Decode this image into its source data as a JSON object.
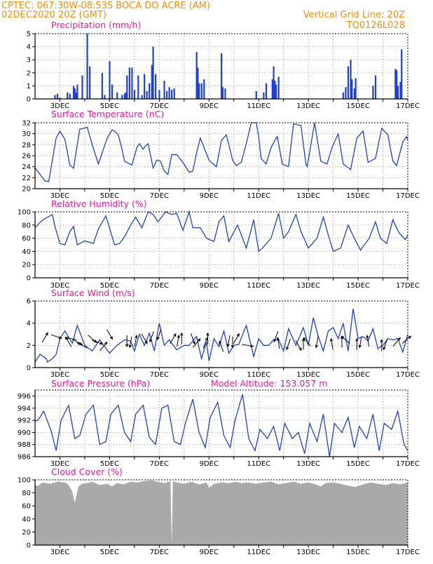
{
  "header": {
    "line1": "CPTEC:   067:30W-08:53S   BOCA DO ACRE (AM)",
    "line2_left": "02DEC2020 20Z (GMT)",
    "line2_right": "Vertical Grid Line: 20Z",
    "line3_right": "TQ0126L028"
  },
  "colors": {
    "header": "#ff8c00",
    "title": "#ff1493",
    "series": "#1f3fdb",
    "cloud": "#a9a9a9",
    "grid": "#a0a0a0",
    "arrow": "#000000"
  },
  "x_axis": {
    "labels": [
      "3DEC",
      "5DEC",
      "7DEC",
      "9DEC",
      "11DEC",
      "13DEC",
      "15DEC",
      "17DEC"
    ]
  },
  "chart_data": [
    {
      "id": "precip",
      "type": "bar",
      "title": "Precipitation (mm/h)",
      "ylim": [
        0,
        5
      ],
      "yticks": [
        "0",
        "1",
        "2",
        "3",
        "4",
        "5"
      ],
      "days": [
        2.8,
        2.9,
        3.0,
        3.3,
        3.4,
        3.55,
        3.6,
        3.65,
        3.7,
        3.9,
        4.1,
        4.2,
        4.7,
        4.8,
        5.0,
        5.1,
        5.3,
        5.5,
        5.6,
        5.65,
        5.7,
        5.8,
        5.9,
        6.0,
        6.15,
        6.3,
        6.4,
        6.5,
        6.6,
        6.7,
        6.75,
        6.85,
        7.0,
        7.2,
        7.3,
        7.4,
        7.5,
        7.6,
        8.5,
        8.55,
        8.6,
        8.7,
        8.8,
        9.5,
        9.55,
        9.65,
        10.9,
        11.2,
        11.3,
        11.55,
        11.6,
        11.65,
        11.7,
        11.8,
        14.4,
        14.5,
        14.6,
        14.7,
        14.75,
        14.85,
        14.9,
        15.6,
        15.7,
        16.5,
        16.55,
        16.6,
        16.7,
        16.75
      ],
      "values": [
        0.3,
        0.4,
        0.1,
        0.5,
        0.4,
        1.0,
        0.8,
        0.5,
        1.1,
        1.8,
        5.0,
        2.5,
        2.0,
        0.3,
        2.9,
        1.1,
        0.5,
        0.3,
        0.4,
        0.5,
        1.8,
        2.4,
        2.4,
        0.7,
        1.8,
        0.3,
        1.9,
        0.6,
        1.2,
        2.6,
        4.0,
        1.9,
        0.7,
        1.4,
        0.6,
        0.9,
        0.7,
        0.8,
        3.6,
        2.4,
        1.2,
        1.2,
        1.5,
        3.5,
        0.9,
        0.8,
        0.6,
        0.5,
        1.2,
        1.5,
        2.5,
        1.4,
        1.1,
        1.7,
        0.5,
        0.9,
        2.5,
        3.0,
        1.5,
        0.8,
        1.6,
        1.0,
        1.8,
        2.3,
        2.2,
        1.0,
        1.3,
        3.8
      ]
    },
    {
      "id": "temp",
      "type": "line",
      "title": "Surface Temperature (nC)",
      "ylim": [
        20,
        32
      ],
      "yticks": [
        "20",
        "22",
        "24",
        "26",
        "28",
        "30",
        "32"
      ],
      "x": [
        2.0,
        2.2,
        2.4,
        2.55,
        2.85,
        3.0,
        3.2,
        3.4,
        3.55,
        3.8,
        4.1,
        4.3,
        4.55,
        4.9,
        5.1,
        5.2,
        5.35,
        5.5,
        5.6,
        5.9,
        6.1,
        6.2,
        6.35,
        6.45,
        6.55,
        6.75,
        6.9,
        7.05,
        7.2,
        7.35,
        7.5,
        7.7,
        7.95,
        8.2,
        8.35,
        8.5,
        8.65,
        9.0,
        9.3,
        9.5,
        9.7,
        9.95,
        10.1,
        10.3,
        10.5,
        10.7,
        10.9,
        11.0,
        11.1,
        11.3,
        11.5,
        11.65,
        11.75,
        11.95,
        12.2,
        12.4,
        12.7,
        12.9,
        12.95,
        13.25,
        13.5,
        13.75,
        13.95,
        14.2,
        14.4,
        14.7,
        14.95,
        15.2,
        15.4,
        15.7,
        15.95,
        16.2,
        16.4,
        16.55,
        16.8,
        16.95,
        17.0
      ],
      "values": [
        23.8,
        22.6,
        21.4,
        21.3,
        29.2,
        30.5,
        29.0,
        24.3,
        23.7,
        30.8,
        31.2,
        28.0,
        24.5,
        29.2,
        30.7,
        30.5,
        29.8,
        27.2,
        25.0,
        24.3,
        27.5,
        28.2,
        27.2,
        27.8,
        28.2,
        23.8,
        25.2,
        25.0,
        23.2,
        22.6,
        26.2,
        26.2,
        24.8,
        23.0,
        23.2,
        26.5,
        29.2,
        25.2,
        24.0,
        28.8,
        29.8,
        25.2,
        24.2,
        24.8,
        28.2,
        32.0,
        32.0,
        29.5,
        25.5,
        24.5,
        27.5,
        28.8,
        29.5,
        24.5,
        24.0,
        31.8,
        31.5,
        24.5,
        24.0,
        32.0,
        25.0,
        24.5,
        27.5,
        30.0,
        24.5,
        23.5,
        29.2,
        30.5,
        24.8,
        25.5,
        31.0,
        29.8,
        25.0,
        24.2,
        28.5,
        29.5,
        28.8
      ]
    },
    {
      "id": "rh",
      "type": "line",
      "title": "Relative Humidity (%)",
      "ylim": [
        0,
        100
      ],
      "yticks": [
        "0",
        "20",
        "40",
        "60",
        "80",
        "100"
      ],
      "x": [
        2.0,
        2.25,
        2.5,
        2.7,
        2.8,
        3.0,
        3.2,
        3.4,
        3.55,
        3.7,
        4.0,
        4.35,
        4.55,
        4.85,
        5.2,
        5.4,
        5.6,
        5.85,
        6.05,
        6.3,
        6.55,
        6.75,
        6.95,
        7.25,
        7.5,
        7.7,
        7.95,
        8.2,
        8.35,
        8.65,
        8.9,
        9.2,
        9.4,
        9.6,
        9.8,
        10.15,
        10.5,
        10.8,
        11.0,
        11.15,
        11.5,
        11.8,
        12.0,
        12.2,
        12.5,
        12.7,
        13.0,
        13.35,
        13.6,
        13.8,
        14.0,
        14.3,
        14.6,
        14.85,
        15.1,
        15.45,
        15.7,
        15.9,
        16.15,
        16.4,
        16.65,
        16.9,
        17.0
      ],
      "values": [
        76,
        86,
        92,
        96,
        78,
        52,
        50,
        70,
        78,
        50,
        56,
        52,
        74,
        94,
        50,
        52,
        62,
        80,
        92,
        76,
        100,
        96,
        85,
        100,
        96,
        98,
        72,
        100,
        76,
        76,
        60,
        55,
        85,
        94,
        55,
        80,
        45,
        88,
        40,
        45,
        60,
        98,
        60,
        70,
        96,
        70,
        45,
        60,
        92,
        65,
        40,
        45,
        80,
        60,
        42,
        60,
        85,
        60,
        52,
        88,
        68,
        58,
        65
      ]
    },
    {
      "id": "wind",
      "type": "line",
      "title": "Surface Wind (m/s)",
      "ylim": [
        0,
        6
      ],
      "yticks": [
        "0",
        "2",
        "4",
        "6"
      ],
      "x": [
        2.0,
        2.2,
        2.45,
        2.5,
        2.7,
        2.85,
        3.0,
        3.2,
        3.5,
        3.7,
        4.0,
        4.3,
        4.6,
        5.0,
        5.3,
        5.6,
        5.85,
        6.0,
        6.2,
        6.4,
        6.6,
        6.8,
        7.0,
        7.2,
        7.4,
        7.7,
        8.0,
        8.2,
        8.5,
        8.7,
        8.9,
        9.0,
        9.2,
        9.4,
        9.6,
        9.8,
        10.0,
        10.2,
        10.5,
        10.8,
        11.0,
        11.2,
        11.4,
        11.6,
        11.8,
        12.0,
        12.2,
        12.5,
        12.8,
        13.0,
        13.2,
        13.4,
        13.6,
        13.8,
        14.0,
        14.2,
        14.4,
        14.6,
        14.8,
        15.0,
        15.2,
        15.4,
        15.6,
        15.8,
        16.0,
        16.2,
        16.4,
        16.6,
        16.8,
        17.0
      ],
      "values": [
        0.5,
        1.2,
        0.8,
        0.5,
        0.8,
        1.2,
        2.6,
        3.3,
        2.2,
        3.8,
        2.0,
        1.5,
        2.5,
        1.3,
        2.0,
        2.5,
        2.4,
        1.5,
        3.0,
        2.0,
        3.1,
        1.5,
        4.0,
        2.0,
        2.5,
        1.6,
        2.0,
        2.0,
        2.8,
        0.8,
        2.3,
        0.6,
        2.6,
        1.9,
        3.3,
        1.3,
        2.0,
        2.1,
        3.8,
        1.0,
        2.6,
        2.0,
        2.0,
        2.5,
        2.5,
        1.5,
        3.5,
        2.0,
        3.6,
        2.0,
        4.5,
        2.8,
        1.5,
        3.3,
        3.6,
        2.6,
        4.0,
        1.5,
        5.3,
        2.6,
        2.8,
        2.4,
        3.5,
        1.7,
        2.0,
        2.6,
        2.5,
        2.6,
        1.4,
        3.0
      ]
    },
    {
      "id": "pressure",
      "type": "line",
      "title": "Surface Pressure (hPa)",
      "annotation": "Model Altitude: 153.057 m",
      "ylim": [
        986,
        997
      ],
      "yticks": [
        "986",
        "988",
        "990",
        "992",
        "994",
        "996"
      ],
      "x": [
        2.0,
        2.15,
        2.35,
        2.65,
        2.85,
        3.05,
        3.35,
        3.6,
        3.8,
        4.05,
        4.35,
        4.6,
        4.85,
        5.05,
        5.35,
        5.6,
        5.85,
        6.05,
        6.35,
        6.6,
        6.85,
        7.1,
        7.35,
        7.6,
        7.85,
        8.05,
        8.35,
        8.6,
        8.85,
        9.05,
        9.35,
        9.6,
        9.85,
        10.05,
        10.35,
        10.6,
        10.85,
        11.05,
        11.35,
        11.6,
        11.85,
        12.05,
        12.35,
        12.6,
        12.85,
        13.05,
        13.35,
        13.6,
        13.85,
        14.05,
        14.35,
        14.6,
        14.85,
        15.05,
        15.35,
        15.6,
        15.85,
        16.05,
        16.35,
        16.6,
        16.85,
        17.0
      ],
      "values": [
        991.8,
        992.2,
        993.5,
        990.2,
        987.0,
        992.0,
        994.5,
        989.0,
        989.5,
        993.0,
        994.5,
        988.0,
        988.5,
        993.0,
        994.5,
        990.0,
        988.5,
        993.0,
        994.5,
        989.2,
        988.0,
        994.0,
        994.5,
        988.5,
        988.0,
        991.5,
        995.5,
        990.0,
        987.5,
        992.5,
        995.0,
        989.5,
        987.5,
        992.0,
        996.3,
        989.0,
        987.0,
        990.5,
        989.0,
        991.0,
        987.0,
        991.5,
        989.0,
        990.0,
        986.5,
        991.5,
        988.5,
        993.0,
        986.0,
        991.5,
        990.0,
        992.5,
        987.5,
        991.0,
        989.0,
        993.0,
        987.0,
        991.5,
        990.5,
        993.5,
        988.0,
        987.0
      ]
    },
    {
      "id": "cloud",
      "type": "area",
      "title": "Cloud Cover (%)",
      "ylim": [
        0,
        100
      ],
      "yticks": [
        "0",
        "20",
        "40",
        "60",
        "80",
        "100"
      ],
      "x": [
        2.0,
        2.1,
        2.3,
        2.6,
        2.9,
        3.2,
        3.35,
        3.5,
        3.6,
        3.75,
        3.9,
        4.1,
        4.3,
        4.6,
        4.9,
        5.1,
        5.3,
        5.55,
        5.85,
        6.1,
        6.4,
        6.7,
        6.95,
        7.2,
        7.45,
        7.5,
        7.55,
        7.7,
        8.0,
        8.3,
        8.6,
        8.9,
        9.0,
        9.2,
        9.5,
        9.8,
        10.1,
        10.3,
        10.6,
        10.9,
        11.2,
        11.5,
        11.8,
        12.1,
        12.4,
        12.7,
        13.0,
        13.3,
        13.5,
        13.7,
        14.0,
        14.3,
        14.6,
        14.9,
        15.2,
        15.5,
        15.8,
        16.1,
        16.4,
        16.7,
        17.0
      ],
      "values": [
        93,
        90,
        96,
        94,
        97,
        96,
        92,
        82,
        65,
        90,
        94,
        95,
        97,
        92,
        94,
        90,
        95,
        93,
        97,
        96,
        98,
        99,
        97,
        95,
        98,
        0,
        98,
        96,
        94,
        97,
        93,
        96,
        88,
        94,
        96,
        95,
        97,
        95,
        96,
        94,
        96,
        97,
        93,
        95,
        97,
        94,
        96,
        93,
        90,
        95,
        96,
        94,
        91,
        89,
        93,
        96,
        94,
        92,
        95,
        93,
        96
      ]
    },
    {
      "id": "wind_vectors",
      "type": "scatter",
      "title": "",
      "x": [
        2.4,
        2.85,
        3.35,
        3.45,
        3.7,
        3.9,
        4.3,
        4.5,
        4.75,
        5.0,
        5.7,
        5.85,
        6.05,
        6.4,
        6.7,
        7.0,
        7.55,
        7.75,
        7.9,
        8.35,
        8.5,
        8.85,
        8.95,
        9.5,
        9.8,
        9.95,
        10.1,
        10.55,
        11.7,
        11.8,
        12.2,
        12.6,
        12.8,
        12.95,
        13.35,
        13.95,
        14.35,
        14.5,
        14.95,
        15.1,
        15.4,
        15.95,
        16.1,
        16.55,
        16.95
      ],
      "values": [
        2.7,
        2.8,
        2.3,
        2.6,
        2.3,
        2.0,
        2.6,
        2.3,
        1.9,
        3.0,
        2.4,
        2.3,
        2.4,
        2.6,
        2.8,
        3.0,
        2.6,
        2.4,
        2.6,
        2.6,
        2.2,
        2.2,
        2.6,
        1.9,
        2.4,
        2.3,
        2.6,
        2.0,
        2.8,
        2.2,
        2.1,
        2.0,
        2.1,
        2.3,
        2.3,
        2.1,
        2.3,
        2.5,
        2.1,
        2.3,
        2.4,
        2.0,
        2.1,
        2.3,
        2.5
      ],
      "angle_deg": [
        60,
        -20,
        120,
        170,
        -30,
        150,
        -40,
        -20,
        50,
        -60,
        -90,
        -100,
        80,
        -60,
        -110,
        -110,
        60,
        80,
        90,
        -70,
        50,
        70,
        90,
        110,
        -100,
        -90,
        60,
        -10,
        -110,
        100,
        -110,
        -60,
        90,
        130,
        -100,
        100,
        90,
        140,
        90,
        -100,
        100,
        90,
        -110,
        50,
        40
      ]
    }
  ]
}
